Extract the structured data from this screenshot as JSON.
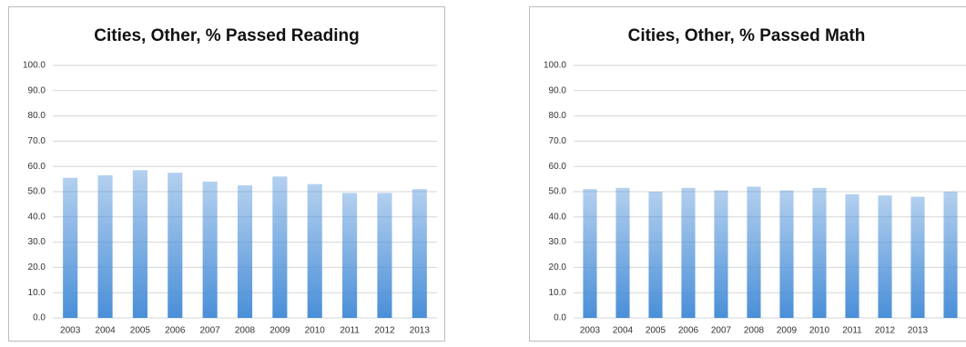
{
  "chart_data": [
    {
      "type": "bar",
      "title": "Cities, Other, % Passed Reading",
      "categories": [
        "2003",
        "2004",
        "2005",
        "2006",
        "2007",
        "2008",
        "2009",
        "2010",
        "2011",
        "2012",
        "2013"
      ],
      "values": [
        55.5,
        56.5,
        58.5,
        57.5,
        54,
        52.5,
        56,
        53,
        49.5,
        49.5,
        51
      ],
      "color": "#4a8fd8",
      "ylim": [
        0,
        100
      ],
      "yticks": [
        {
          "value": 0,
          "label": "0.0"
        },
        {
          "value": 10,
          "label": "10.0"
        },
        {
          "value": 20,
          "label": "20.0"
        },
        {
          "value": 30,
          "label": "30.0"
        },
        {
          "value": 40,
          "label": "40.0"
        },
        {
          "value": 50,
          "label": "50.0"
        },
        {
          "value": 60,
          "label": "60.0"
        },
        {
          "value": 70,
          "label": "70.0"
        },
        {
          "value": 80,
          "label": "80.0"
        },
        {
          "value": 90,
          "label": "90.0"
        },
        {
          "value": 100,
          "label": "100.0"
        }
      ],
      "grid": true
    },
    {
      "type": "bar",
      "title": "Cities, Other, % Passed Math",
      "categories": [
        "2003",
        "2004",
        "2005",
        "2006",
        "2007",
        "2008",
        "2009",
        "2010",
        "2011",
        "2012",
        "2013",
        null
      ],
      "values": [
        51,
        51.5,
        50,
        51.5,
        50.5,
        52,
        50.5,
        51.5,
        49,
        48.5,
        48,
        50
      ],
      "color": "#4a8fd8",
      "ylim": [
        0,
        100
      ],
      "yticks": [
        {
          "value": 0,
          "label": "0.0"
        },
        {
          "value": 10,
          "label": "10.0"
        },
        {
          "value": 20,
          "label": "20.0"
        },
        {
          "value": 30,
          "label": "30.0"
        },
        {
          "value": 40,
          "label": "40.0"
        },
        {
          "value": 50,
          "label": "50.0"
        },
        {
          "value": 60,
          "label": "60.0"
        },
        {
          "value": 70,
          "label": "70.0"
        },
        {
          "value": 80,
          "label": "80.0"
        },
        {
          "value": 90,
          "label": "90.0"
        },
        {
          "value": 100,
          "label": "100.0"
        }
      ],
      "grid": true
    }
  ]
}
